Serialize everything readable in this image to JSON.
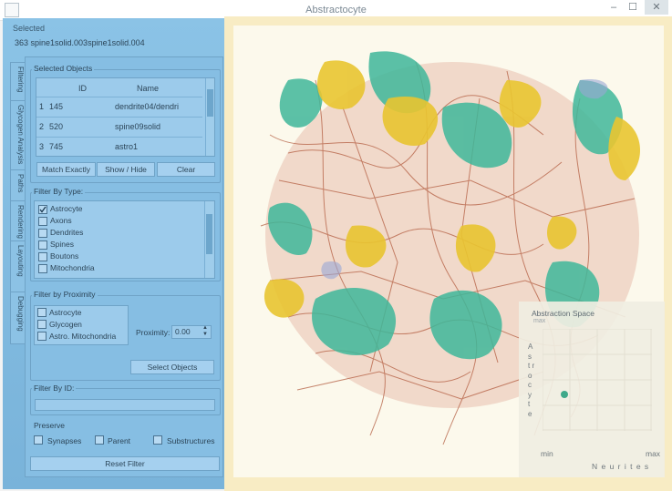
{
  "window": {
    "title": "Abstractocyte",
    "minimize": "–",
    "maximize": "☐",
    "close": "✕"
  },
  "selected": {
    "header": "Selected",
    "value": "363   spine1solid.003spine1solid.004"
  },
  "tabs": [
    "Filtering",
    "Glycogen Analysis",
    "Paths",
    "Rendering",
    "Layouting",
    "Debugging"
  ],
  "selected_objects": {
    "label": "Selected Objects",
    "columns": [
      "ID",
      "Name"
    ],
    "rows": [
      {
        "num": "1",
        "id": "145",
        "name": "dendrite04/dendri"
      },
      {
        "num": "2",
        "id": "520",
        "name": "spine09solid"
      },
      {
        "num": "3",
        "id": "745",
        "name": "astro1"
      }
    ],
    "buttons": [
      "Match Exactly",
      "Show / Hide",
      "Clear"
    ]
  },
  "filter_by_type": {
    "label": "Filter By Type:",
    "items": [
      {
        "label": "Astrocyte",
        "checked": true
      },
      {
        "label": "Axons",
        "checked": false
      },
      {
        "label": "Dendrites",
        "checked": false
      },
      {
        "label": "Spines",
        "checked": false
      },
      {
        "label": "Boutons",
        "checked": false
      },
      {
        "label": "Mitochondria",
        "checked": false
      }
    ]
  },
  "filter_by_proximity": {
    "label": "Filter by Proximity",
    "items": [
      "Astrocyte",
      "Glycogen",
      "Astro. Mitochondria"
    ],
    "proximity_label": "Proximity:",
    "proximity_value": "0.00",
    "select_button": "Select Objects"
  },
  "filter_by_id": {
    "label": "Filter By ID:",
    "value": ""
  },
  "preserve": {
    "label": "Preserve",
    "items": [
      "Synapses",
      "Parent",
      "Substructures"
    ]
  },
  "reset_button": "Reset Filter",
  "abstraction_space": {
    "title": "Abstraction Space",
    "subtitle": "max",
    "y_label": "A s t r o c y t e",
    "x_label": "N e u r i t e s",
    "x_min": "min",
    "x_max": "max",
    "marker": {
      "x": 0.2,
      "y": 0.34
    }
  },
  "colors": {
    "panel": "#7fb9df",
    "viewport_border": "#f8ecc4",
    "astro": "#3fb79a",
    "yellow": "#e9c531",
    "neurite": "#b55a3a"
  }
}
